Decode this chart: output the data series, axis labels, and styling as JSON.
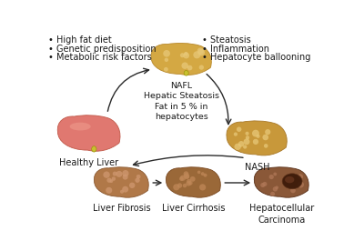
{
  "background_color": "#ffffff",
  "left_bullets": [
    "High fat diet",
    "Genetic predisposition",
    "Metabolic risk factors"
  ],
  "right_bullets": [
    "Steatosis",
    "Inflammation",
    "Hepatocyte ballooning"
  ],
  "nafl_label": "NAFL\nHepatic Steatosis\nFat in 5 % in\nhepatocytes",
  "nash_label": "NASH",
  "healthy_label": "Healthy Liver",
  "fibrosis_label": "Liver Fibrosis",
  "cirrhosis_label": "Liver Cirrhosis",
  "hcc_label": "Hepatocellular\nCarcinoma",
  "healthy_color": "#e07870",
  "healthy_highlight": "#f0a090",
  "healthy_edge": "#c05848",
  "nafl_color": "#d4a843",
  "nafl_highlight": "#e8c878",
  "nafl_edge": "#b8882a",
  "nash_color": "#c8983a",
  "nash_highlight": "#ddb050",
  "nash_edge": "#a87828",
  "nash_spot": "#e8c878",
  "fibrosis_color": "#b07848",
  "fibrosis_edge": "#8a5830",
  "fibrosis_spot": "#d09870",
  "cirrhosis_color": "#9a6838",
  "cirrhosis_edge": "#7a4820",
  "cirrhosis_spot": "#c08858",
  "hcc_color": "#8a5838",
  "hcc_edge": "#5a3018",
  "hcc_spot": "#b07858",
  "hcc_tumor": "#3a1808",
  "text_color": "#1a1a1a",
  "arrow_color": "#2a2a2a",
  "font_size_label": 7.0,
  "font_size_bullet": 7.0,
  "font_size_nafl": 6.8
}
